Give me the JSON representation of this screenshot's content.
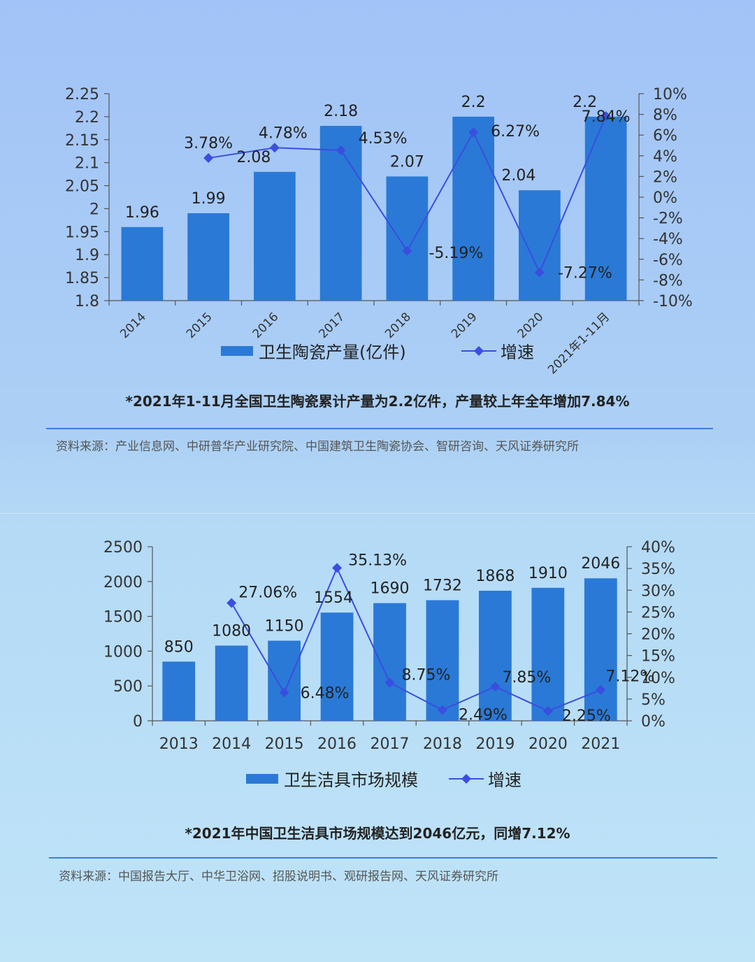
{
  "chart_data": [
    {
      "type": "bar",
      "categories": [
        "2014",
        "2015",
        "2016",
        "2017",
        "2018",
        "2019",
        "2020",
        "2021年1-11月"
      ],
      "series": [
        {
          "name": "卫生陶瓷产量(亿件)",
          "type": "bar",
          "axis": "left",
          "values": [
            1.96,
            1.99,
            2.08,
            2.18,
            2.07,
            2.2,
            2.04,
            2.2
          ],
          "labels": [
            "1.96",
            "1.99",
            "2.08",
            "2.18",
            "2.07",
            "2.2",
            "2.04",
            "2.2"
          ]
        },
        {
          "name": "增速",
          "type": "line",
          "axis": "right",
          "values": [
            null,
            3.78,
            4.78,
            4.53,
            -5.19,
            6.27,
            -7.27,
            7.84
          ],
          "labels": [
            "",
            "3.78%",
            "4.78%",
            "4.53%",
            "-5.19%",
            "6.27%",
            "-7.27%",
            "7.84%"
          ]
        }
      ],
      "ylim": [
        1.8,
        2.25
      ],
      "yticks": [
        "1.8",
        "1.85",
        "1.9",
        "1.95",
        "2",
        "2.05",
        "2.1",
        "2.15",
        "2.2",
        "2.25"
      ],
      "y2lim": [
        -10,
        10
      ],
      "y2ticks": [
        "-10%",
        "-8%",
        "-6%",
        "-4%",
        "-2%",
        "0%",
        "2%",
        "4%",
        "6%",
        "8%",
        "10%"
      ],
      "legend": [
        "卫生陶瓷产量(亿件)",
        "增速"
      ]
    },
    {
      "type": "bar",
      "categories": [
        "2013",
        "2014",
        "2015",
        "2016",
        "2017",
        "2018",
        "2019",
        "2020",
        "2021"
      ],
      "series": [
        {
          "name": "卫生洁具市场规模",
          "type": "bar",
          "axis": "left",
          "values": [
            850,
            1080,
            1150,
            1554,
            1690,
            1732,
            1868,
            1910,
            2046
          ],
          "labels": [
            "850",
            "1080",
            "1150",
            "1554",
            "1690",
            "1732",
            "1868",
            "1910",
            "2046"
          ]
        },
        {
          "name": "增速",
          "type": "line",
          "axis": "right",
          "values": [
            null,
            27.06,
            6.48,
            35.13,
            8.75,
            2.49,
            7.85,
            2.25,
            7.12
          ],
          "labels": [
            "",
            "27.06%",
            "6.48%",
            "35.13%",
            "8.75%",
            "2.49%",
            "7.85%",
            "2.25%",
            "7.12%"
          ]
        }
      ],
      "ylim": [
        0,
        2500
      ],
      "yticks": [
        "0",
        "500",
        "1000",
        "1500",
        "2000",
        "2500"
      ],
      "y2lim": [
        0,
        40
      ],
      "y2ticks": [
        "0%",
        "5%",
        "10%",
        "15%",
        "20%",
        "25%",
        "30%",
        "35%",
        "40%"
      ],
      "legend": [
        "卫生洁具市场规模",
        "增速"
      ]
    }
  ],
  "captions": {
    "top": "*2021年1-11月全国卫生陶瓷累计产量为2.2亿件，产量较上年全年增加7.84%",
    "bottom": "*2021年中国卫生洁具市场规模达到2046亿元，同增7.12%"
  },
  "sources": {
    "top": "资料来源：产业信息网、中研普华产业研究院、中国建筑卫生陶瓷协会、智研咨询、天风证券研究所",
    "bottom": "资料来源：中国报告大厅、中华卫浴网、招股说明书、观研报告网、天风证券研究所"
  },
  "colors": {
    "bar": "#2a79d6",
    "line": "#3a4ee0",
    "axis": "#555555"
  }
}
